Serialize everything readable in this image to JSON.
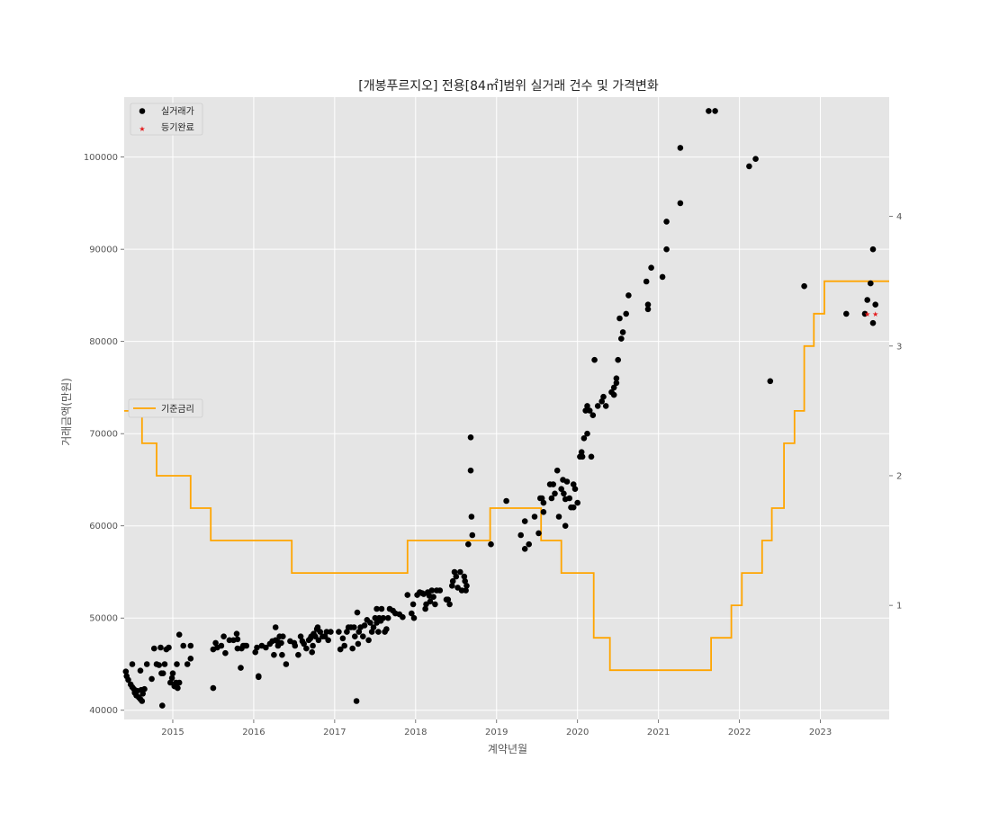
{
  "chart_data": {
    "type": "scatter",
    "title": "[개봉푸르지오] 전용[84㎡]범위 실거래 건수 및 가격변화",
    "xlabel": "계약년월",
    "ylabel": "거래금액(만원)",
    "xlim": [
      2014.4,
      2023.85
    ],
    "ylim": [
      39000,
      106500
    ],
    "y2lim": [
      0.12,
      4.92
    ],
    "x_ticks": [
      2015,
      2016,
      2017,
      2018,
      2019,
      2020,
      2021,
      2022,
      2023
    ],
    "x_tick_labels": [
      "2015",
      "2016",
      "2017",
      "2018",
      "2019",
      "2020",
      "2021",
      "2022",
      "2023"
    ],
    "y_ticks": [
      40000,
      50000,
      60000,
      70000,
      80000,
      90000,
      100000
    ],
    "y_tick_labels": [
      "40000",
      "50000",
      "60000",
      "70000",
      "80000",
      "90000",
      "100000"
    ],
    "y2_ticks": [
      1,
      2,
      3,
      4
    ],
    "y2_tick_labels": [
      "1",
      "2",
      "3",
      "4"
    ],
    "grid": true,
    "legend_placement": "top-left",
    "legend2_placement": "center-left",
    "colors": {
      "background": "#e5e5e5",
      "grid": "#ffffff",
      "trades": "#000000",
      "registered": "#e41a1c",
      "rate": "#ffa500"
    },
    "series": [
      {
        "name": "실거래가",
        "kind": "scatter",
        "points": [
          [
            2014.42,
            44200
          ],
          [
            2014.43,
            43700
          ],
          [
            2014.45,
            43300
          ],
          [
            2014.48,
            42800
          ],
          [
            2014.5,
            42500
          ],
          [
            2014.52,
            42300
          ],
          [
            2014.53,
            41900
          ],
          [
            2014.55,
            41600
          ],
          [
            2014.56,
            42100
          ],
          [
            2014.58,
            41400
          ],
          [
            2014.6,
            41200
          ],
          [
            2014.61,
            42200
          ],
          [
            2014.62,
            41000
          ],
          [
            2014.63,
            41800
          ],
          [
            2014.5,
            45000
          ],
          [
            2014.6,
            44300
          ],
          [
            2014.65,
            42300
          ],
          [
            2014.68,
            45000
          ],
          [
            2014.74,
            43400
          ],
          [
            2014.77,
            46700
          ],
          [
            2014.8,
            45000
          ],
          [
            2014.83,
            44900
          ],
          [
            2014.85,
            46800
          ],
          [
            2014.86,
            44000
          ],
          [
            2014.87,
            40500
          ],
          [
            2014.88,
            44000
          ],
          [
            2014.9,
            45000
          ],
          [
            2014.92,
            46600
          ],
          [
            2014.95,
            46800
          ],
          [
            2014.97,
            43000
          ],
          [
            2014.99,
            43500
          ],
          [
            2015.0,
            44000
          ],
          [
            2015.02,
            42600
          ],
          [
            2015.04,
            43000
          ],
          [
            2015.05,
            42500
          ],
          [
            2015.06,
            42400
          ],
          [
            2015.08,
            43000
          ],
          [
            2015.05,
            45000
          ],
          [
            2015.08,
            48200
          ],
          [
            2015.13,
            47000
          ],
          [
            2015.18,
            45000
          ],
          [
            2015.22,
            47000
          ],
          [
            2015.22,
            45600
          ],
          [
            2015.5,
            42400
          ],
          [
            2015.5,
            46600
          ],
          [
            2015.53,
            47300
          ],
          [
            2015.55,
            46800
          ],
          [
            2015.6,
            47000
          ],
          [
            2015.63,
            48000
          ],
          [
            2015.65,
            46200
          ],
          [
            2015.7,
            47600
          ],
          [
            2015.75,
            47600
          ],
          [
            2015.79,
            48300
          ],
          [
            2015.8,
            47700
          ],
          [
            2015.8,
            46700
          ],
          [
            2015.84,
            44600
          ],
          [
            2015.85,
            46700
          ],
          [
            2015.87,
            47000
          ],
          [
            2015.89,
            47000
          ],
          [
            2015.91,
            47000
          ],
          [
            2016.02,
            46300
          ],
          [
            2016.04,
            46800
          ],
          [
            2016.06,
            43700
          ],
          [
            2016.06,
            43600
          ],
          [
            2016.1,
            47000
          ],
          [
            2016.15,
            46800
          ],
          [
            2016.2,
            47200
          ],
          [
            2016.23,
            47500
          ],
          [
            2016.25,
            46000
          ],
          [
            2016.27,
            47600
          ],
          [
            2016.27,
            49000
          ],
          [
            2016.3,
            47400
          ],
          [
            2016.3,
            47000
          ],
          [
            2016.32,
            48000
          ],
          [
            2016.34,
            47300
          ],
          [
            2016.35,
            46000
          ],
          [
            2016.36,
            48000
          ],
          [
            2016.4,
            45000
          ],
          [
            2016.45,
            47500
          ],
          [
            2016.5,
            47300
          ],
          [
            2016.51,
            47000
          ],
          [
            2016.55,
            46000
          ],
          [
            2016.58,
            48000
          ],
          [
            2016.6,
            47500
          ],
          [
            2016.62,
            47200
          ],
          [
            2016.65,
            46700
          ],
          [
            2016.68,
            47600
          ],
          [
            2016.7,
            47800
          ],
          [
            2016.71,
            48000
          ],
          [
            2016.72,
            46300
          ],
          [
            2016.73,
            47000
          ],
          [
            2016.74,
            48300
          ],
          [
            2016.76,
            48000
          ],
          [
            2016.78,
            48800
          ],
          [
            2016.79,
            49000
          ],
          [
            2016.8,
            47600
          ],
          [
            2016.82,
            48500
          ],
          [
            2016.85,
            48000
          ],
          [
            2016.88,
            48000
          ],
          [
            2016.9,
            48500
          ],
          [
            2016.92,
            47600
          ],
          [
            2016.95,
            48500
          ],
          [
            2017.05,
            48500
          ],
          [
            2017.07,
            46600
          ],
          [
            2017.1,
            47800
          ],
          [
            2017.12,
            47000
          ],
          [
            2017.15,
            48500
          ],
          [
            2017.17,
            49000
          ],
          [
            2017.2,
            49000
          ],
          [
            2017.22,
            46700
          ],
          [
            2017.24,
            49000
          ],
          [
            2017.25,
            48000
          ],
          [
            2017.27,
            41000
          ],
          [
            2017.28,
            50600
          ],
          [
            2017.29,
            47200
          ],
          [
            2017.3,
            48500
          ],
          [
            2017.32,
            49000
          ],
          [
            2017.35,
            48000
          ],
          [
            2017.37,
            49200
          ],
          [
            2017.4,
            49800
          ],
          [
            2017.42,
            47600
          ],
          [
            2017.44,
            49500
          ],
          [
            2017.46,
            48500
          ],
          [
            2017.48,
            49000
          ],
          [
            2017.5,
            50000
          ],
          [
            2017.52,
            49500
          ],
          [
            2017.52,
            51000
          ],
          [
            2017.54,
            48500
          ],
          [
            2017.55,
            50000
          ],
          [
            2017.57,
            49700
          ],
          [
            2017.58,
            51000
          ],
          [
            2017.6,
            50000
          ],
          [
            2017.62,
            48500
          ],
          [
            2017.64,
            48800
          ],
          [
            2017.66,
            50000
          ],
          [
            2017.68,
            51000
          ],
          [
            2017.72,
            50800
          ],
          [
            2017.75,
            50500
          ],
          [
            2017.8,
            50400
          ],
          [
            2017.84,
            50100
          ],
          [
            2017.9,
            52500
          ],
          [
            2017.95,
            50500
          ],
          [
            2017.97,
            51500
          ],
          [
            2017.98,
            50000
          ],
          [
            2018.02,
            52500
          ],
          [
            2018.05,
            52800
          ],
          [
            2018.08,
            52700
          ],
          [
            2018.1,
            52600
          ],
          [
            2018.12,
            51000
          ],
          [
            2018.13,
            51500
          ],
          [
            2018.15,
            52800
          ],
          [
            2018.17,
            52400
          ],
          [
            2018.18,
            51800
          ],
          [
            2018.2,
            53000
          ],
          [
            2018.22,
            52300
          ],
          [
            2018.24,
            51500
          ],
          [
            2018.26,
            53000
          ],
          [
            2018.3,
            53000
          ],
          [
            2018.38,
            52000
          ],
          [
            2018.4,
            52000
          ],
          [
            2018.42,
            51500
          ],
          [
            2018.45,
            53500
          ],
          [
            2018.46,
            54000
          ],
          [
            2018.48,
            55000
          ],
          [
            2018.5,
            54500
          ],
          [
            2018.52,
            53300
          ],
          [
            2018.55,
            55000
          ],
          [
            2018.57,
            53000
          ],
          [
            2018.6,
            54500
          ],
          [
            2018.61,
            54000
          ],
          [
            2018.62,
            53000
          ],
          [
            2018.63,
            53500
          ],
          [
            2018.65,
            58000
          ],
          [
            2018.68,
            69600
          ],
          [
            2018.68,
            66000
          ],
          [
            2018.69,
            61000
          ],
          [
            2018.7,
            59000
          ],
          [
            2018.93,
            58000
          ],
          [
            2019.12,
            62700
          ],
          [
            2019.3,
            59000
          ],
          [
            2019.35,
            60500
          ],
          [
            2019.35,
            57500
          ],
          [
            2019.4,
            58000
          ],
          [
            2019.47,
            61000
          ],
          [
            2019.52,
            59200
          ],
          [
            2019.54,
            63000
          ],
          [
            2019.56,
            63000
          ],
          [
            2019.58,
            62500
          ],
          [
            2019.58,
            61500
          ],
          [
            2019.66,
            64500
          ],
          [
            2019.68,
            63000
          ],
          [
            2019.7,
            64500
          ],
          [
            2019.72,
            63500
          ],
          [
            2019.75,
            66000
          ],
          [
            2019.77,
            61000
          ],
          [
            2019.8,
            64000
          ],
          [
            2019.82,
            65000
          ],
          [
            2019.83,
            63500
          ],
          [
            2019.85,
            60000
          ],
          [
            2019.85,
            62900
          ],
          [
            2019.87,
            64800
          ],
          [
            2019.9,
            63000
          ],
          [
            2019.92,
            62000
          ],
          [
            2019.95,
            64500
          ],
          [
            2019.95,
            62000
          ],
          [
            2019.97,
            64000
          ],
          [
            2020.0,
            62500
          ],
          [
            2020.03,
            67500
          ],
          [
            2020.05,
            68000
          ],
          [
            2020.06,
            67500
          ],
          [
            2020.08,
            69500
          ],
          [
            2020.1,
            72500
          ],
          [
            2020.12,
            70000
          ],
          [
            2020.12,
            73000
          ],
          [
            2020.15,
            72500
          ],
          [
            2020.17,
            67500
          ],
          [
            2020.19,
            72000
          ],
          [
            2020.21,
            78000
          ],
          [
            2020.25,
            73000
          ],
          [
            2020.3,
            73500
          ],
          [
            2020.32,
            74000
          ],
          [
            2020.35,
            73000
          ],
          [
            2020.42,
            74500
          ],
          [
            2020.45,
            75000
          ],
          [
            2020.45,
            74200
          ],
          [
            2020.48,
            75500
          ],
          [
            2020.48,
            76000
          ],
          [
            2020.5,
            78000
          ],
          [
            2020.52,
            82500
          ],
          [
            2020.54,
            80300
          ],
          [
            2020.56,
            81000
          ],
          [
            2020.6,
            83000
          ],
          [
            2020.63,
            85000
          ],
          [
            2020.85,
            86500
          ],
          [
            2020.87,
            83500
          ],
          [
            2020.87,
            84000
          ],
          [
            2020.91,
            88000
          ],
          [
            2021.05,
            87000
          ],
          [
            2021.1,
            90000
          ],
          [
            2021.1,
            93000
          ],
          [
            2021.27,
            95000
          ],
          [
            2021.27,
            101000
          ],
          [
            2021.62,
            105000
          ],
          [
            2021.7,
            105000
          ],
          [
            2022.12,
            99000
          ],
          [
            2022.2,
            99800
          ],
          [
            2022.38,
            75700
          ],
          [
            2022.8,
            86000
          ],
          [
            2023.32,
            83000
          ],
          [
            2023.55,
            83000
          ],
          [
            2023.58,
            84500
          ],
          [
            2023.62,
            86300
          ],
          [
            2023.65,
            90000
          ],
          [
            2023.65,
            82000
          ],
          [
            2023.68,
            84000
          ]
        ]
      },
      {
        "name": "등기완료",
        "kind": "scatter",
        "marker": "star",
        "points": [
          [
            2023.58,
            83000
          ],
          [
            2023.68,
            83000
          ]
        ]
      },
      {
        "name": "기준금리",
        "kind": "step",
        "axis": "right",
        "points": [
          [
            2014.4,
            2.5
          ],
          [
            2014.62,
            2.25
          ],
          [
            2014.8,
            2.0
          ],
          [
            2015.22,
            1.75
          ],
          [
            2015.47,
            1.5
          ],
          [
            2016.47,
            1.25
          ],
          [
            2017.9,
            1.5
          ],
          [
            2018.92,
            1.75
          ],
          [
            2019.55,
            1.5
          ],
          [
            2019.8,
            1.25
          ],
          [
            2020.2,
            0.75
          ],
          [
            2020.4,
            0.5
          ],
          [
            2021.65,
            0.75
          ],
          [
            2021.9,
            1.0
          ],
          [
            2022.03,
            1.25
          ],
          [
            2022.28,
            1.5
          ],
          [
            2022.4,
            1.75
          ],
          [
            2022.55,
            2.25
          ],
          [
            2022.68,
            2.5
          ],
          [
            2022.8,
            3.0
          ],
          [
            2022.92,
            3.25
          ],
          [
            2023.05,
            3.5
          ],
          [
            2023.85,
            3.5
          ]
        ]
      }
    ]
  }
}
